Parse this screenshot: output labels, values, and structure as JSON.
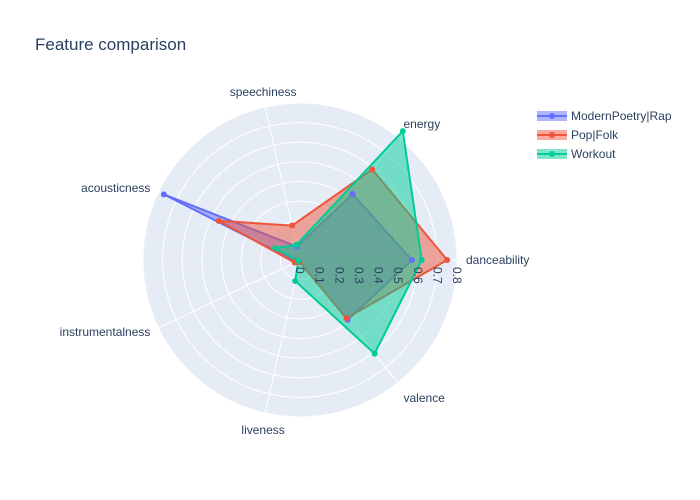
{
  "chart_data": {
    "type": "radar",
    "title": "Feature comparison",
    "axes": [
      "danceability",
      "energy",
      "speechiness",
      "acousticness",
      "instrumentalness",
      "liveness",
      "valence"
    ],
    "radial_range": [
      0,
      0.8
    ],
    "radial_ticks": [
      "0",
      "0.1",
      "0.2",
      "0.3",
      "0.4",
      "0.5",
      "0.6",
      "0.7",
      "0.8"
    ],
    "legend_position": "top-right",
    "series": [
      {
        "name": "ModernPoetry|Rap",
        "color": "#636efa",
        "values": [
          0.57,
          0.43,
          0.07,
          0.77,
          0.02,
          0.01,
          0.39
        ]
      },
      {
        "name": "Pop|Folk",
        "color": "#ef553b",
        "values": [
          0.75,
          0.59,
          0.18,
          0.46,
          0.03,
          0.01,
          0.38
        ]
      },
      {
        "name": "Workout",
        "color": "#00cc96",
        "values": [
          0.62,
          0.84,
          0.08,
          0.14,
          0.01,
          0.11,
          0.61
        ]
      }
    ]
  }
}
